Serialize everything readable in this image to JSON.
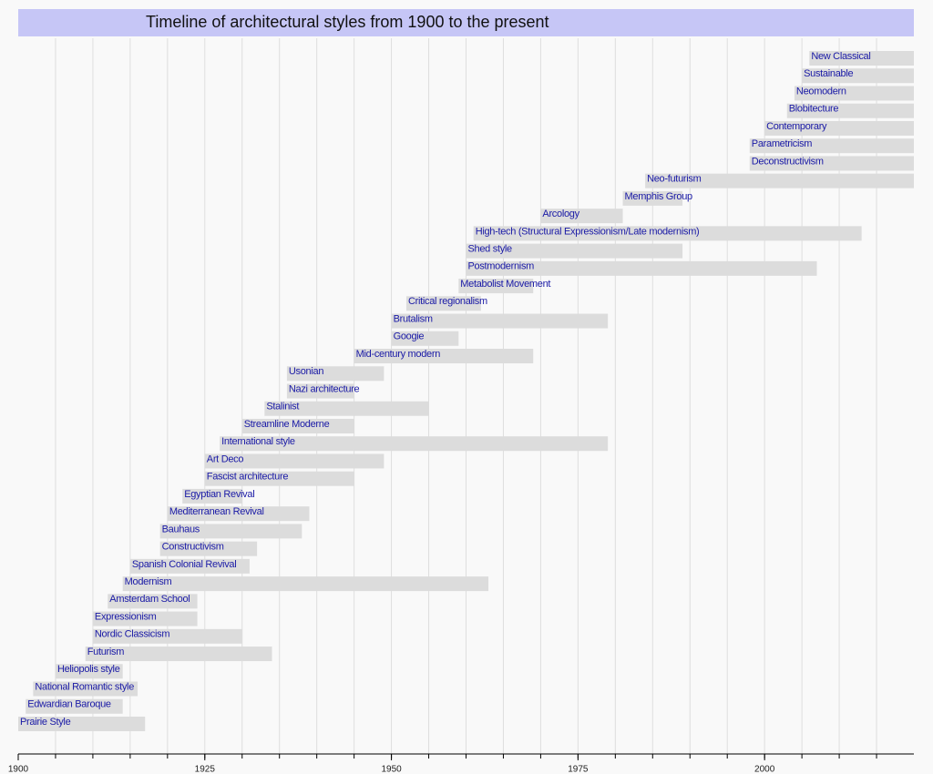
{
  "chart_data": {
    "type": "timeline",
    "title": "Timeline of architectural styles from 1900 to the present",
    "xlim": [
      1900,
      2020
    ],
    "xticks": [
      1900,
      1925,
      1950,
      1975,
      2000
    ],
    "xgrid": [
      1905,
      1910,
      1915,
      1920,
      1925,
      1930,
      1935,
      1940,
      1945,
      1950,
      1955,
      1960,
      1965,
      1970,
      1975,
      1980,
      1985,
      1990,
      1995,
      2000,
      2005,
      2010,
      2015
    ],
    "color": "#dcdcdc",
    "items": [
      {
        "name": "Prairie Style",
        "start": 1900,
        "end": 1917
      },
      {
        "name": "Edwardian Baroque",
        "start": 1901,
        "end": 1914
      },
      {
        "name": "National Romantic style",
        "start": 1902,
        "end": 1916
      },
      {
        "name": "Heliopolis style",
        "start": 1905,
        "end": 1914
      },
      {
        "name": "Futurism",
        "start": 1909,
        "end": 1934
      },
      {
        "name": "Nordic Classicism",
        "start": 1910,
        "end": 1930
      },
      {
        "name": "Expressionism",
        "start": 1910,
        "end": 1924
      },
      {
        "name": "Amsterdam School",
        "start": 1912,
        "end": 1924
      },
      {
        "name": "Modernism",
        "start": 1914,
        "end": 1963
      },
      {
        "name": "Spanish Colonial Revival",
        "start": 1915,
        "end": 1931
      },
      {
        "name": "Constructivism",
        "start": 1919,
        "end": 1932
      },
      {
        "name": "Bauhaus",
        "start": 1919,
        "end": 1938
      },
      {
        "name": "Mediterranean Revival",
        "start": 1920,
        "end": 1939
      },
      {
        "name": "Egyptian Revival",
        "start": 1922,
        "end": 1930
      },
      {
        "name": "Fascist architecture",
        "start": 1925,
        "end": 1945
      },
      {
        "name": "Art Deco",
        "start": 1925,
        "end": 1949
      },
      {
        "name": "International style",
        "start": 1927,
        "end": 1979
      },
      {
        "name": "Streamline Moderne",
        "start": 1930,
        "end": 1945
      },
      {
        "name": "Stalinist",
        "start": 1933,
        "end": 1955
      },
      {
        "name": "Nazi architecture",
        "start": 1936,
        "end": 1945
      },
      {
        "name": "Usonian",
        "start": 1936,
        "end": 1949
      },
      {
        "name": "Mid-century modern",
        "start": 1945,
        "end": 1969
      },
      {
        "name": "Googie",
        "start": 1950,
        "end": 1959
      },
      {
        "name": "Brutalism",
        "start": 1950,
        "end": 1979
      },
      {
        "name": "Critical regionalism",
        "start": 1952,
        "end": 1962
      },
      {
        "name": "Metabolist Movement",
        "start": 1959,
        "end": 1969
      },
      {
        "name": "Postmodernism",
        "start": 1960,
        "end": 2007
      },
      {
        "name": "Shed style",
        "start": 1960,
        "end": 1989
      },
      {
        "name": "High-tech (Structural Expressionism/Late modernism)",
        "start": 1961,
        "end": 2013
      },
      {
        "name": "Arcology",
        "start": 1970,
        "end": 1981
      },
      {
        "name": "Memphis Group",
        "start": 1981,
        "end": 1989
      },
      {
        "name": "Neo-futurism",
        "start": 1984,
        "end": 2020
      },
      {
        "name": "Deconstructivism",
        "start": 1998,
        "end": 2020
      },
      {
        "name": "Parametricism",
        "start": 1998,
        "end": 2020
      },
      {
        "name": "Contemporary",
        "start": 2000,
        "end": 2020
      },
      {
        "name": "Blobitecture",
        "start": 2003,
        "end": 2020
      },
      {
        "name": "Neomodern",
        "start": 2004,
        "end": 2020
      },
      {
        "name": "Sustainable",
        "start": 2005,
        "end": 2020
      },
      {
        "name": "New Classical",
        "start": 2006,
        "end": 2020
      }
    ]
  }
}
